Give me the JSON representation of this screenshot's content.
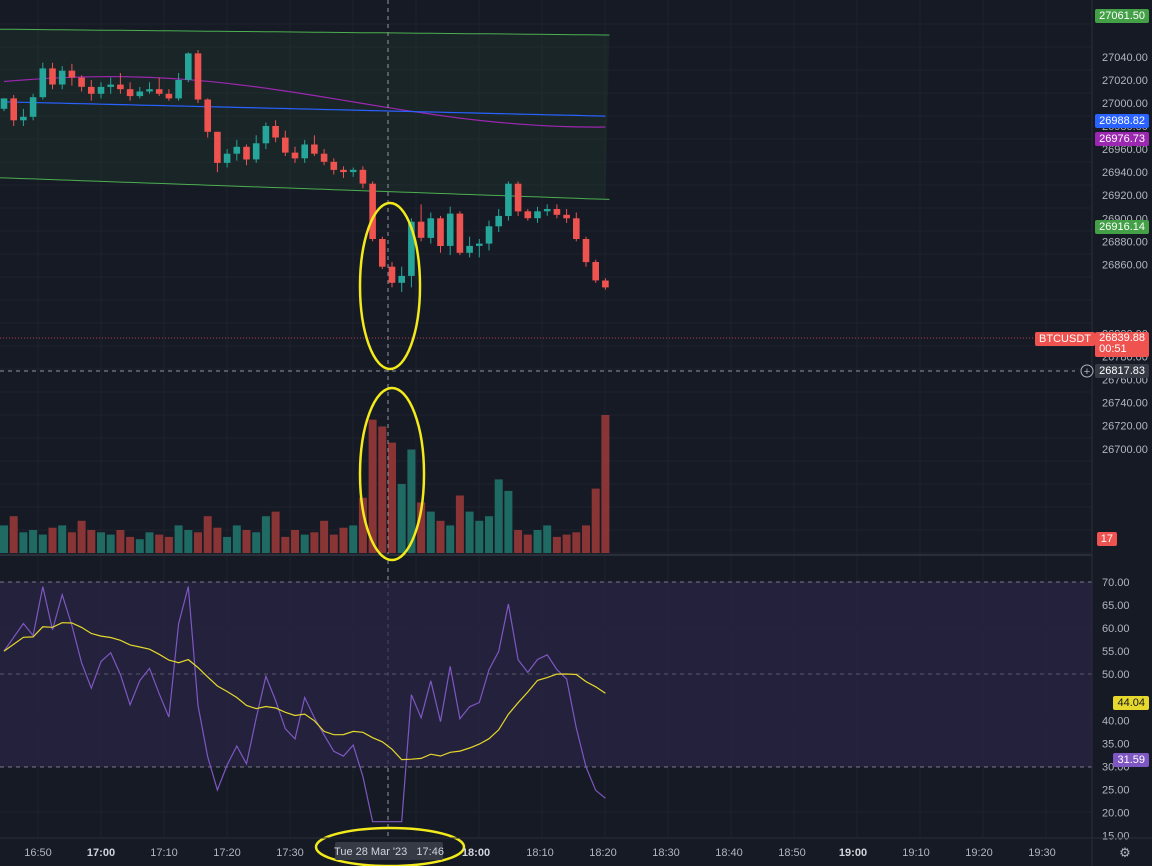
{
  "chart_data": {
    "type": "candlestick",
    "symbol": "BTCUSDT",
    "price_axis": {
      "ticks": [
        "27040.00",
        "27020.00",
        "27000.00",
        "26980.00",
        "26960.00",
        "26940.00",
        "26920.00",
        "26900.00",
        "26880.00",
        "26860.00",
        "26800.00",
        "26780.00",
        "26760.00",
        "26740.00",
        "26720.00",
        "26700.00"
      ],
      "range": [
        26700,
        27062
      ]
    },
    "time_axis": {
      "ticks": [
        "16:50",
        "17:00",
        "17:10",
        "17:20",
        "17:30",
        "18:00",
        "18:10",
        "18:20",
        "18:30",
        "18:40",
        "18:50",
        "19:00",
        "19:10",
        "19:20",
        "19:30"
      ],
      "bold_ticks": [
        "17:00",
        "18:00",
        "19:00"
      ],
      "crosshair_label": "Tue 28 Mar '23   17:46"
    },
    "price_labels": {
      "upper_band": "27061.50",
      "blue_line": "26988.82",
      "purple_line": "26976.73",
      "lower_band": "26916.14",
      "last_price": "26839.88",
      "countdown": "00:51",
      "crosshair_price": "26817.83",
      "volume_label": "17"
    },
    "candles": [
      [
        26995,
        27004,
        26993,
        27004
      ],
      [
        27004,
        27007,
        26980,
        26985
      ],
      [
        26985,
        26995,
        26980,
        26988
      ],
      [
        26988,
        27008,
        26985,
        27005
      ],
      [
        27005,
        27035,
        27003,
        27030
      ],
      [
        27030,
        27035,
        27012,
        27016
      ],
      [
        27016,
        27032,
        27012,
        27028
      ],
      [
        27028,
        27034,
        27015,
        27022
      ],
      [
        27022,
        27024,
        27010,
        27014
      ],
      [
        27014,
        27020,
        27002,
        27008
      ],
      [
        27008,
        27018,
        27004,
        27014
      ],
      [
        27014,
        27022,
        27008,
        27016
      ],
      [
        27016,
        27026,
        27008,
        27012
      ],
      [
        27012,
        27018,
        27002,
        27006
      ],
      [
        27006,
        27014,
        27004,
        27010
      ],
      [
        27010,
        27018,
        27008,
        27012
      ],
      [
        27012,
        27022,
        27006,
        27008
      ],
      [
        27008,
        27012,
        27002,
        27004
      ],
      [
        27004,
        27026,
        27002,
        27020
      ],
      [
        27020,
        27044,
        27018,
        27043
      ],
      [
        27043,
        27046,
        27000,
        27003
      ],
      [
        27003,
        27004,
        26970,
        26975
      ],
      [
        26975,
        26975,
        26940,
        26948
      ],
      [
        26948,
        26960,
        26944,
        26956
      ],
      [
        26956,
        26968,
        26950,
        26962
      ],
      [
        26962,
        26964,
        26946,
        26951
      ],
      [
        26951,
        26972,
        26948,
        26965
      ],
      [
        26965,
        26983,
        26960,
        26980
      ],
      [
        26980,
        26985,
        26966,
        26970
      ],
      [
        26970,
        26976,
        26954,
        26957
      ],
      [
        26957,
        26962,
        26948,
        26952
      ],
      [
        26952,
        26968,
        26948,
        26964
      ],
      [
        26964,
        26972,
        26954,
        26956
      ],
      [
        26956,
        26960,
        26946,
        26949
      ],
      [
        26949,
        26952,
        26938,
        26942
      ],
      [
        26942,
        26945,
        26935,
        26940
      ],
      [
        26940,
        26944,
        26936,
        26942
      ],
      [
        26942,
        26945,
        26926,
        26930
      ],
      [
        26930,
        26932,
        26880,
        26882
      ],
      [
        26882,
        26884,
        26856,
        26858
      ],
      [
        26858,
        26862,
        26840,
        26844
      ],
      [
        26844,
        26858,
        26836,
        26850
      ],
      [
        26850,
        26900,
        26840,
        26897
      ],
      [
        26897,
        26912,
        26880,
        26883
      ],
      [
        26883,
        26905,
        26878,
        26900
      ],
      [
        26900,
        26902,
        26870,
        26876
      ],
      [
        26876,
        26910,
        26868,
        26904
      ],
      [
        26904,
        26906,
        26868,
        26870
      ],
      [
        26870,
        26884,
        26866,
        26876
      ],
      [
        26876,
        26882,
        26866,
        26878
      ],
      [
        26878,
        26898,
        26872,
        26893
      ],
      [
        26893,
        26908,
        26888,
        26902
      ],
      [
        26902,
        26932,
        26898,
        26930
      ],
      [
        26930,
        26932,
        26902,
        26906
      ],
      [
        26906,
        26908,
        26898,
        26900
      ],
      [
        26900,
        26910,
        26896,
        26906
      ],
      [
        26906,
        26912,
        26902,
        26908
      ],
      [
        26908,
        26912,
        26900,
        26903
      ],
      [
        26903,
        26908,
        26896,
        26900
      ],
      [
        26900,
        26905,
        26880,
        26882
      ],
      [
        26882,
        26884,
        26858,
        26862
      ],
      [
        26862,
        26864,
        26844,
        26846
      ],
      [
        26846,
        26848,
        26838,
        26840
      ]
    ],
    "volume": [
      12,
      16,
      9,
      10,
      8,
      11,
      12,
      9,
      14,
      10,
      9,
      8,
      10,
      7,
      6,
      9,
      8,
      7,
      12,
      10,
      9,
      16,
      11,
      7,
      12,
      10,
      9,
      16,
      18,
      7,
      10,
      8,
      9,
      14,
      8,
      11,
      12,
      24,
      58,
      55,
      48,
      30,
      45,
      22,
      18,
      14,
      12,
      25,
      18,
      14,
      16,
      32,
      27,
      10,
      8,
      10,
      12,
      7,
      8,
      9,
      12,
      28,
      60
    ]
  },
  "rsi": {
    "ticks": [
      "70.00",
      "65.00",
      "60.00",
      "55.00",
      "50.00",
      "40.00",
      "35.00",
      "30.00",
      "25.00",
      "20.00",
      "15.00"
    ],
    "range": [
      14,
      72
    ],
    "overbought": 70,
    "middle": 50,
    "oversold": 30,
    "ma_label": "44.04",
    "rsi_label": "31.59"
  },
  "colors": {
    "background": "#161a25",
    "up": "#26a69a",
    "down": "#ef5350",
    "band": "#4caf50",
    "blue_line": "#2962ff",
    "purple_line": "#9c27b0",
    "rsi_line": "#7e57c2",
    "rsi_ma": "#e6d82c",
    "highlight": "#f2ea1a",
    "axis_text": "#b2b5be"
  }
}
